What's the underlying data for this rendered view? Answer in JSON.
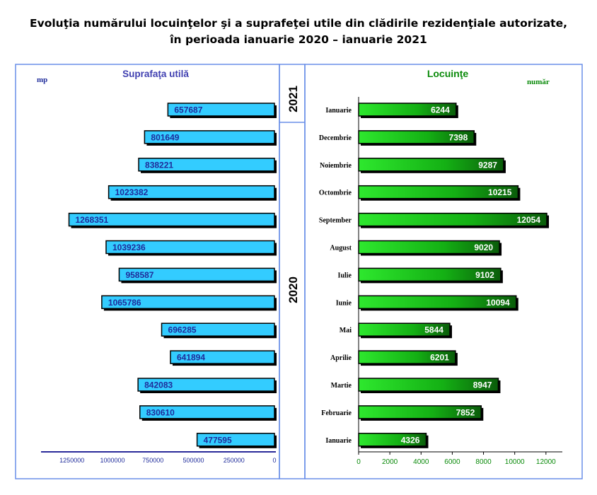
{
  "title_line1": "Evoluţia numărului locuinţelor şi a suprafeţei utile din clădirile rezidenţiale autorizate,",
  "title_line2": "în perioada ianuarie 2020 – ianuarie 2021",
  "year_2021": "2021",
  "year_2020": "2020",
  "colors": {
    "left_bar": "#33CCFF",
    "right_bar": "#18B818",
    "left_text": "#1F2C9B",
    "right_text": "#0A8A0A",
    "panel_border": "#6A8FE8"
  },
  "chart_data": [
    {
      "type": "bar",
      "orientation": "horizontal",
      "direction": "right-to-left",
      "title": "Suprafaţa utilă",
      "unit_label": "mp",
      "categories": [
        "Ianuarie",
        "Decembrie",
        "Noiembrie",
        "Octombrie",
        "September",
        "August",
        "Iulie",
        "Iunie",
        "Mai",
        "Aprilie",
        "Martie",
        "Februarie",
        "Ianuarie"
      ],
      "values": [
        657687,
        801649,
        838221,
        1023382,
        1268351,
        1039236,
        958587,
        1065786,
        696285,
        641894,
        842083,
        830610,
        477595
      ],
      "value_labels": [
        "657687",
        "801649",
        "838221",
        "1023382",
        "1268351",
        "1039236",
        "958587",
        "1065786",
        "696285",
        "641894",
        "842083",
        "830610",
        "477595"
      ],
      "xlim": [
        1450000,
        0
      ],
      "ticks": [
        1250000,
        1000000,
        750000,
        500000,
        250000,
        0
      ],
      "tick_labels": [
        "1250000",
        "1000000",
        "750000",
        "500000",
        "250000",
        "0"
      ]
    },
    {
      "type": "bar",
      "orientation": "horizontal",
      "title": "Locuinţe",
      "unit_label": "număr",
      "categories": [
        "Ianuarie",
        "Decembrie",
        "Noiembrie",
        "Octombrie",
        "September",
        "August",
        "Iulie",
        "Iunie",
        "Mai",
        "Aprilie",
        "Martie",
        "Februarie",
        "Ianuarie"
      ],
      "category_labels": [
        "Ianuarie",
        "Decembrie",
        "Noiembrie",
        "Octombrie",
        "September",
        "August",
        "Iulie",
        "Iunie",
        "Mai",
        "Aprilie",
        "Martie",
        "Februarie",
        "Ianuarie"
      ],
      "values": [
        6244,
        7398,
        9287,
        10215,
        12054,
        9020,
        9102,
        10094,
        5844,
        6201,
        8947,
        7852,
        4326
      ],
      "value_labels": [
        "6244",
        "7398",
        "9287",
        "10215",
        "12054",
        "9020",
        "9102",
        "10094",
        "5844",
        "6201",
        "8947",
        "7852",
        "4326"
      ],
      "xlim": [
        0,
        13000
      ],
      "ticks": [
        0,
        2000,
        4000,
        6000,
        8000,
        10000,
        12000
      ],
      "tick_labels": [
        "0",
        "2000",
        "4000",
        "6000",
        "8000",
        "10000",
        "12000"
      ]
    }
  ]
}
